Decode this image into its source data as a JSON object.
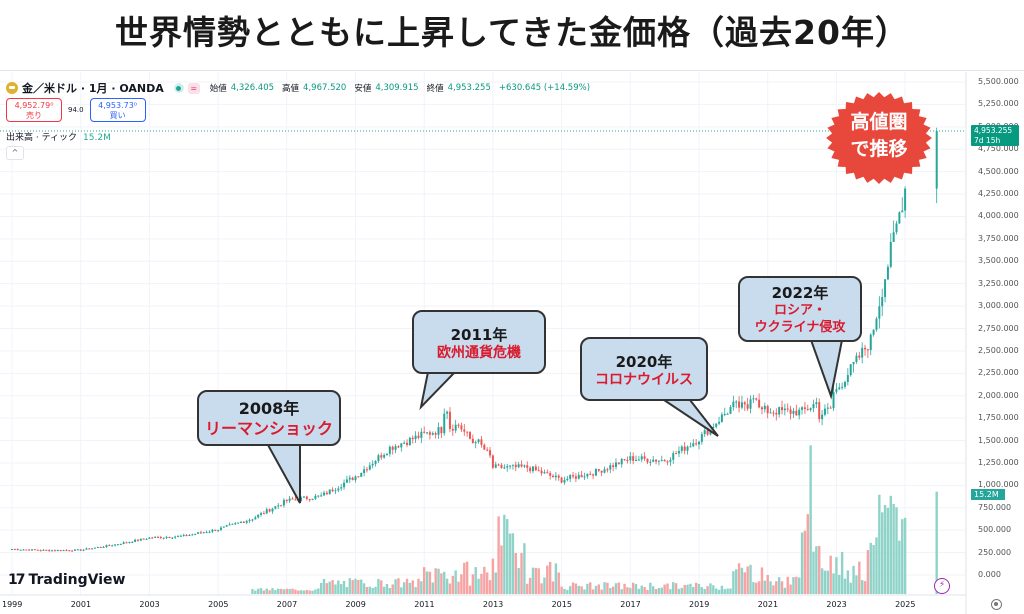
{
  "title": "世界情勢とともに上昇してきた金価格（過去20年）",
  "header": {
    "symbol": "金／米ドル · 1月 · OANDA",
    "ohlc": [
      {
        "key": "始値",
        "value": "4,326.405"
      },
      {
        "key": "高値",
        "value": "4,967.520"
      },
      {
        "key": "安値",
        "value": "4,309.915"
      },
      {
        "key": "終値",
        "value": "4,953.255"
      }
    ],
    "change": "+630.645 (+14.59%)",
    "sell_price": "4,952.79⁰",
    "sell_label": "売り",
    "spread": "94.0",
    "buy_price": "4,953.73⁰",
    "buy_label": "買い",
    "volume_label": "出来高 · ティック",
    "volume_value": "15.2M",
    "collapse_icon": "^"
  },
  "price_tag": {
    "price": "4,953.255",
    "countdown": "7d 15h"
  },
  "volume_tag": "15.2M",
  "branding": {
    "logo_mark": "17",
    "logo_text": "TradingView"
  },
  "badge": {
    "line1": "高値圏",
    "line2": "で推移",
    "color": "#e8473c"
  },
  "callouts": [
    {
      "year": "2008年",
      "event": "リーマンショック"
    },
    {
      "year": "2011年",
      "event": "欧州通貨危機"
    },
    {
      "year": "2020年",
      "event": "コロナウイルス"
    },
    {
      "year": "2022年",
      "event_line1": "ロシア・",
      "event_line2": "ウクライナ侵攻"
    }
  ],
  "colors": {
    "up": "#26a69a",
    "down": "#ef5350",
    "vol_up": "#8fd3c8",
    "vol_down": "#f5a3a3",
    "grid": "#f0f3fa",
    "last_line": "#26a69a"
  },
  "chart_data": {
    "type": "candlestick",
    "title": "世界情勢とともに上昇してきた金価格（過去20年）",
    "symbol": "XAU/USD",
    "timeframe": "1M",
    "x_ticks": [
      "1999",
      "2001",
      "2003",
      "2005",
      "2007",
      "2009",
      "2011",
      "2013",
      "2015",
      "2017",
      "2019",
      "2021",
      "2023",
      "2025"
    ],
    "y_ticks": [
      "5,500.000",
      "5,250.000",
      "5,000.000",
      "4,750.000",
      "4,500.000",
      "4,250.000",
      "4,000.000",
      "3,750.000",
      "3,500.000",
      "3,250.000",
      "3,000.000",
      "2,750.000",
      "2,500.000",
      "2,250.000",
      "2,000.000",
      "1,750.000",
      "1,500.000",
      "1,250.000",
      "1,000.000",
      "750.000",
      "500.000",
      "250.000",
      "0.000"
    ],
    "ylim": [
      0,
      5500
    ],
    "annual_close_approx": {
      "years": [
        1999,
        2000,
        2001,
        2002,
        2003,
        2004,
        2005,
        2006,
        2007,
        2008,
        2009,
        2010,
        2011,
        2012,
        2013,
        2014,
        2015,
        2016,
        2017,
        2018,
        2019,
        2020,
        2021,
        2022,
        2023,
        2024,
        2025,
        2026
      ],
      "values": [
        290,
        275,
        278,
        340,
        415,
        435,
        510,
        630,
        830,
        880,
        1100,
        1420,
        1570,
        1675,
        1200,
        1200,
        1060,
        1150,
        1300,
        1280,
        1520,
        1890,
        1830,
        1820,
        2060,
        2620,
        4320,
        4953
      ]
    },
    "peaks": [
      {
        "label": "2011 high",
        "value": 1920
      },
      {
        "label": "2020 high",
        "value": 2070
      }
    ],
    "last_price": 4953.255,
    "volume_series_approx": {
      "note": "relative tick volume, last bar 15.2M",
      "last": "15.2M"
    },
    "grid": true,
    "legend_position": "top-left"
  }
}
